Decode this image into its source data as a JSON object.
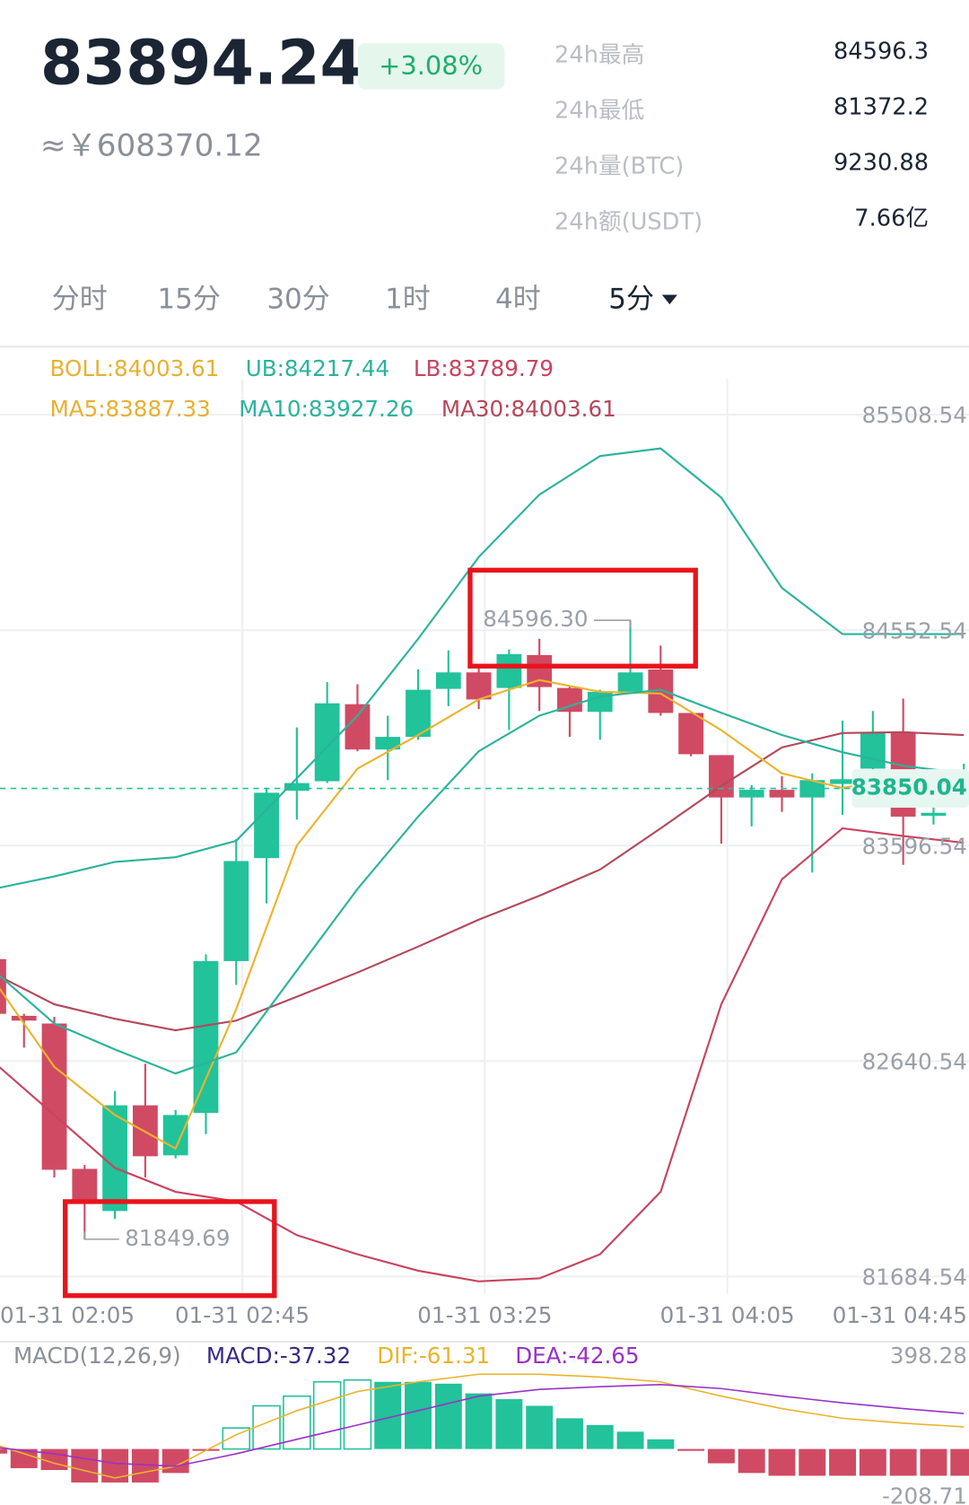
{
  "header": {
    "price": "83894.24",
    "change": "+3.08%",
    "cny": "≈￥608370.12"
  },
  "stats": [
    {
      "label": "24h最高",
      "value": "84596.3"
    },
    {
      "label": "24h最低",
      "value": "81372.2"
    },
    {
      "label": "24h量(BTC)",
      "value": "9230.88"
    },
    {
      "label": "24h额(USDT)",
      "value": "7.66亿"
    }
  ],
  "tabs": [
    "分时",
    "15分",
    "30分",
    "1时",
    "4时",
    "5分"
  ],
  "chart": {
    "type": "candlestick",
    "legend": [
      [
        {
          "text": "BOLL:84003.61",
          "color": "#e8b030"
        },
        {
          "text": "UB:84217.44",
          "color": "#2bb39c"
        },
        {
          "text": "LB:83789.79",
          "color": "#c9445f"
        }
      ],
      [
        {
          "text": "MA5:83887.33",
          "color": "#e8b030"
        },
        {
          "text": "MA10:83927.26",
          "color": "#2bb39c"
        },
        {
          "text": "MA30:84003.61",
          "color": "#b5485a"
        }
      ]
    ],
    "ylim": [
      81684.54,
      85508.54
    ],
    "yticks": [
      85508.54,
      84552.54,
      83596.54,
      82640.54,
      81684.54
    ],
    "xticks": [
      {
        "value": 0.2,
        "label": "01-31 02:05"
      },
      {
        "value": 8.2,
        "label": "01-31 02:45"
      },
      {
        "value": 16.2,
        "label": "01-31 03:25"
      },
      {
        "value": 24.2,
        "label": "01-31 04:05"
      },
      {
        "value": 32.2,
        "label": "01-31 04:45"
      }
    ],
    "open": [
      83093,
      82841,
      82807,
      82162,
      81975,
      82444,
      82222,
      82410,
      83084,
      83541,
      83840,
      83882,
      84224,
      84023,
      84079,
      84292,
      84365,
      84296,
      84442,
      84296,
      84190,
      84279,
      84378,
      84185,
      83998,
      83810,
      83844,
      83810,
      83870,
      83938,
      84096,
      83729,
      83887
    ],
    "close": [
      82850,
      82820,
      82158,
      82009,
      82444,
      82218,
      82401,
      83084,
      83528,
      83831,
      83874,
      84228,
      84023,
      84079,
      84288,
      84365,
      84245,
      84446,
      84300,
      84190,
      84279,
      84365,
      84185,
      84002,
      83810,
      83844,
      83810,
      83887,
      83891,
      84096,
      83725,
      83742,
      83900
    ],
    "high": [
      83093,
      82850,
      82837,
      82179,
      82508,
      82628,
      82423,
      83114,
      83626,
      83853,
      84121,
      84322,
      84313,
      84173,
      84378,
      84463,
      84399,
      84467,
      84514,
      84305,
      84288,
      84596.3,
      84484,
      84185,
      83998,
      83865,
      83904,
      83917,
      84151,
      84194,
      84249,
      83810,
      83960
    ],
    "low": [
      82850,
      82700,
      82124,
      81849.69,
      81940,
      82124,
      82209,
      82316,
      82978,
      83340,
      83712,
      83874,
      84015,
      83887,
      84066,
      84215,
      84202,
      84109,
      84194,
      84079,
      84066,
      84279,
      84173,
      83993,
      83605,
      83682,
      83746,
      83477,
      83733,
      83929,
      83511,
      83690,
      83870
    ],
    "line_x": [
      0,
      2,
      4,
      6,
      8,
      10,
      12,
      14,
      16,
      18,
      20,
      22,
      24,
      26,
      28,
      30,
      32
    ],
    "lines": [
      {
        "color": "#2bb39c",
        "values": [
          83404,
          83460,
          83524,
          83545,
          83618,
          83895,
          84173,
          84514,
          84877,
          85154,
          85325,
          85359,
          85141,
          84740,
          84535,
          84535,
          84535
        ]
      },
      {
        "color": "#b5485a",
        "values": [
          83029,
          82892,
          82828,
          82777,
          82820,
          82926,
          83033,
          83148,
          83268,
          83374,
          83490,
          83673,
          83861,
          84032,
          84096,
          84100,
          84087
        ]
      },
      {
        "color": "#c9445f",
        "values": [
          82636,
          82401,
          82166,
          82060,
          82017,
          81868,
          81783,
          81710,
          81663,
          81676,
          81783,
          82060,
          82892,
          83447,
          83673,
          83639,
          83609
        ]
      },
      {
        "color": "#eab42c",
        "values": [
          82999,
          82615,
          82401,
          82252,
          82871,
          83597,
          83938,
          84087,
          84245,
          84331,
          84279,
          84271,
          84109,
          83917,
          83852,
          83904,
          83917
        ]
      },
      {
        "color": "#2bb39c",
        "values": [
          83042,
          82807,
          82692,
          82585,
          82679,
          83042,
          83404,
          83725,
          84015,
          84173,
          84258,
          84288,
          84186,
          84087,
          84011,
          83951,
          83917
        ]
      }
    ],
    "annotations": [
      {
        "text": "84596.30",
        "index": 21,
        "value": 84596.3
      },
      {
        "text": "81849.69",
        "index": 3,
        "value": 81849.69
      }
    ],
    "last_price": 83850.04
  },
  "macd": {
    "legend": [
      {
        "text": "MACD(12,26,9)",
        "color": "#8a9099"
      },
      {
        "text": "MACD:-37.32",
        "color": "#3a2a86"
      },
      {
        "text": "DIF:-61.31",
        "color": "#eab42c"
      },
      {
        "text": "DEA:-42.65",
        "color": "#9a32c6"
      }
    ],
    "ylim": [
      -208.71,
      398.28
    ],
    "yticks": [
      398.28,
      -208.71
    ],
    "hist": [
      -20,
      -83,
      -91,
      -145,
      -145,
      -145,
      -104,
      -8,
      91,
      187,
      229,
      291,
      299,
      291,
      291,
      283,
      241,
      216,
      187,
      133,
      104,
      75,
      42,
      -8,
      -62,
      -104,
      -116,
      -116,
      -116,
      -116,
      -116,
      -116,
      -116
    ],
    "dif": {
      "color": "#eab42c",
      "values": [
        21,
        -62,
        -125,
        -75,
        62,
        166,
        249,
        291,
        324,
        324,
        312,
        291,
        229,
        175,
        133,
        112,
        96
      ]
    },
    "dea": {
      "color": "#9a32c6",
      "values": [
        8,
        -21,
        -62,
        -75,
        -21,
        42,
        104,
        166,
        229,
        258,
        270,
        279,
        262,
        229,
        200,
        175,
        154
      ]
    }
  }
}
